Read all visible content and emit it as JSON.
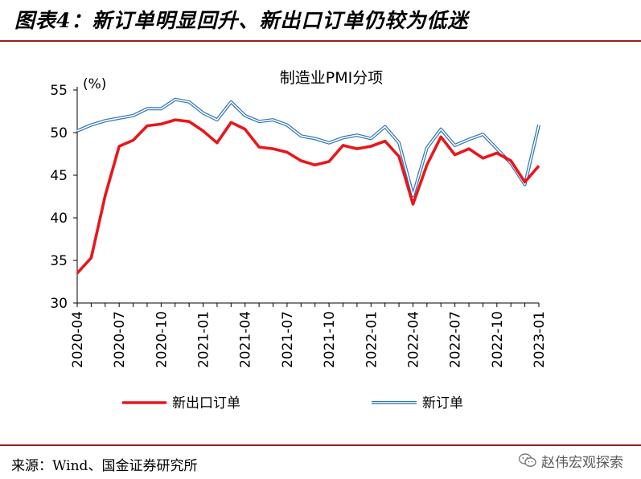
{
  "header": {
    "title": "图表4：新订单明显回升、新出口订单仍较为低迷"
  },
  "footer": {
    "source": "来源：Wind、国金证券研究所",
    "watermark": "赵伟宏观探索"
  },
  "chart_data": {
    "type": "line",
    "title": "制造业PMI分项",
    "ylabel": "(%)",
    "ylim": [
      30,
      55
    ],
    "yticks": [
      30,
      35,
      40,
      45,
      50,
      55
    ],
    "x": [
      "2020-04",
      "2020-05",
      "2020-06",
      "2020-07",
      "2020-08",
      "2020-09",
      "2020-10",
      "2020-11",
      "2020-12",
      "2021-01",
      "2021-02",
      "2021-03",
      "2021-04",
      "2021-05",
      "2021-06",
      "2021-07",
      "2021-08",
      "2021-09",
      "2021-10",
      "2021-11",
      "2021-12",
      "2022-01",
      "2022-02",
      "2022-03",
      "2022-04",
      "2022-05",
      "2022-06",
      "2022-07",
      "2022-08",
      "2022-09",
      "2022-10",
      "2022-11",
      "2022-12",
      "2023-01"
    ],
    "xticks": [
      "2020-04",
      "2020-07",
      "2020-10",
      "2021-01",
      "2021-04",
      "2021-07",
      "2021-10",
      "2022-01",
      "2022-04",
      "2022-07",
      "2022-10",
      "2023-01"
    ],
    "series": [
      {
        "name": "新出口订单",
        "color": "#e8171b",
        "values": [
          33.5,
          35.3,
          42.6,
          48.4,
          49.1,
          50.8,
          51.0,
          51.5,
          51.3,
          50.2,
          48.8,
          51.2,
          50.4,
          48.3,
          48.1,
          47.7,
          46.7,
          46.2,
          46.6,
          48.5,
          48.1,
          48.4,
          49.0,
          47.2,
          41.6,
          46.2,
          49.5,
          47.4,
          48.1,
          47.0,
          47.6,
          46.7,
          44.2,
          46.1
        ]
      },
      {
        "name": "新订单",
        "color": "#2e75b6",
        "values": [
          50.2,
          50.9,
          51.4,
          51.7,
          52.0,
          52.8,
          52.8,
          53.9,
          53.6,
          52.3,
          51.5,
          53.6,
          52.0,
          51.3,
          51.5,
          50.9,
          49.6,
          49.3,
          48.8,
          49.4,
          49.7,
          49.3,
          50.7,
          48.8,
          42.6,
          48.2,
          50.4,
          48.5,
          49.2,
          49.8,
          48.1,
          46.4,
          43.9,
          50.9
        ]
      }
    ],
    "legend": "bottom",
    "grid": false
  }
}
